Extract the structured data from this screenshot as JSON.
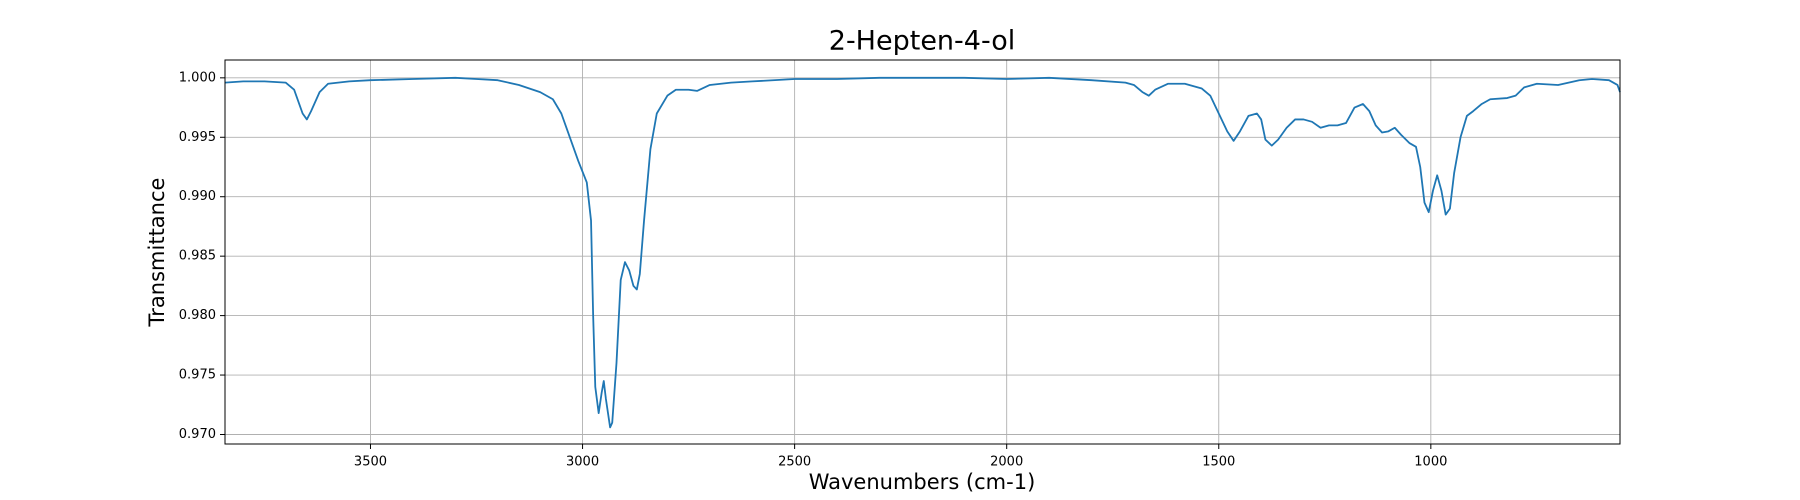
{
  "chart_data": {
    "type": "line",
    "title": "2-Hepten-4-ol",
    "xlabel": "Wavenumbers (cm-1)",
    "ylabel": "Transmittance",
    "xlim": [
      3843,
      554
    ],
    "ylim": [
      0.9692,
      1.0015
    ],
    "xticks": [
      3500,
      3000,
      2500,
      2000,
      1500,
      1000
    ],
    "yticks": [
      {
        "value": 0.97,
        "label": "0.970"
      },
      {
        "value": 0.975,
        "label": "0.975"
      },
      {
        "value": 0.98,
        "label": "0.980"
      },
      {
        "value": 0.985,
        "label": "0.985"
      },
      {
        "value": 0.99,
        "label": "0.990"
      },
      {
        "value": 0.995,
        "label": "0.995"
      },
      {
        "value": 1.0,
        "label": "1.000"
      }
    ],
    "grid": true,
    "color": "#1f77b4",
    "x": [
      3843,
      3800,
      3750,
      3700,
      3680,
      3660,
      3650,
      3640,
      3620,
      3600,
      3550,
      3500,
      3400,
      3300,
      3250,
      3200,
      3150,
      3100,
      3070,
      3050,
      3030,
      3010,
      2990,
      2980,
      2975,
      2970,
      2962,
      2955,
      2950,
      2945,
      2935,
      2930,
      2920,
      2910,
      2900,
      2890,
      2880,
      2872,
      2865,
      2855,
      2840,
      2825,
      2800,
      2780,
      2750,
      2730,
      2700,
      2650,
      2600,
      2500,
      2400,
      2300,
      2200,
      2100,
      2000,
      1900,
      1800,
      1720,
      1700,
      1680,
      1665,
      1650,
      1620,
      1580,
      1540,
      1520,
      1500,
      1480,
      1465,
      1450,
      1430,
      1410,
      1400,
      1390,
      1375,
      1360,
      1340,
      1320,
      1300,
      1280,
      1260,
      1240,
      1220,
      1200,
      1180,
      1160,
      1145,
      1130,
      1115,
      1100,
      1085,
      1070,
      1050,
      1035,
      1025,
      1015,
      1005,
      995,
      985,
      975,
      965,
      955,
      945,
      930,
      915,
      900,
      880,
      860,
      820,
      800,
      780,
      750,
      700,
      650,
      620,
      580,
      560,
      554
    ],
    "values": [
      0.9996,
      0.9997,
      0.9997,
      0.9996,
      0.999,
      0.997,
      0.9965,
      0.9972,
      0.9988,
      0.9995,
      0.9997,
      0.9998,
      0.9999,
      1.0,
      0.9999,
      0.9998,
      0.9994,
      0.9988,
      0.9982,
      0.997,
      0.995,
      0.993,
      0.9912,
      0.988,
      0.98,
      0.974,
      0.9718,
      0.9735,
      0.9745,
      0.973,
      0.9706,
      0.971,
      0.976,
      0.983,
      0.9845,
      0.9838,
      0.9825,
      0.9822,
      0.9835,
      0.988,
      0.994,
      0.997,
      0.9985,
      0.999,
      0.999,
      0.9989,
      0.9994,
      0.9996,
      0.9997,
      0.9999,
      0.9999,
      1.0,
      1.0,
      1.0,
      0.9999,
      1.0,
      0.9998,
      0.9996,
      0.9994,
      0.9988,
      0.9985,
      0.999,
      0.9995,
      0.9995,
      0.9991,
      0.9985,
      0.997,
      0.9955,
      0.9947,
      0.9955,
      0.9968,
      0.997,
      0.9965,
      0.9948,
      0.9943,
      0.9948,
      0.9958,
      0.9965,
      0.9965,
      0.9963,
      0.9958,
      0.996,
      0.996,
      0.9962,
      0.9975,
      0.9978,
      0.9972,
      0.996,
      0.9954,
      0.9955,
      0.9958,
      0.9952,
      0.9945,
      0.9942,
      0.9925,
      0.9895,
      0.9887,
      0.9905,
      0.9918,
      0.9905,
      0.9885,
      0.989,
      0.992,
      0.995,
      0.9968,
      0.9972,
      0.9978,
      0.9982,
      0.9983,
      0.9985,
      0.9992,
      0.9995,
      0.9994,
      0.9998,
      0.9999,
      0.9998,
      0.9994,
      0.9988
    ]
  }
}
